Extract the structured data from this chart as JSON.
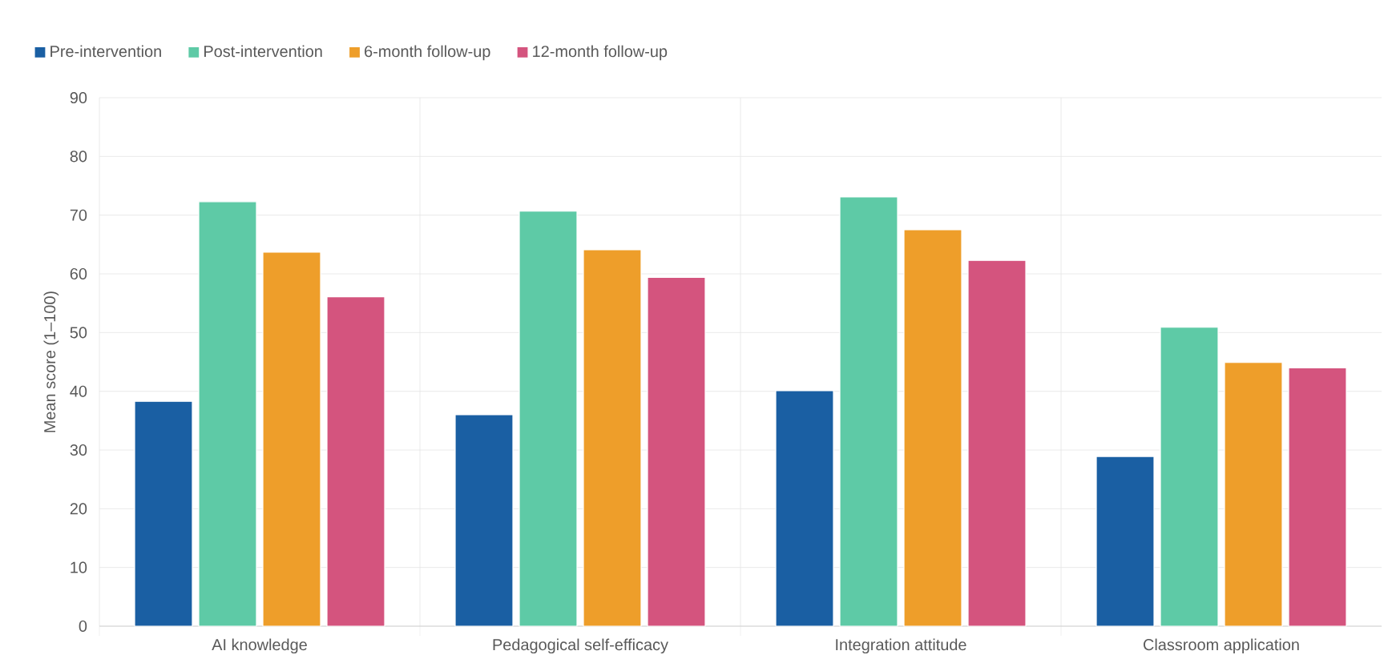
{
  "chart_data": {
    "type": "bar",
    "ylabel": "Mean score (1–100)",
    "categories": [
      "AI knowledge",
      "Pedagogical self-efficacy",
      "Integration attitude",
      "Classroom application"
    ],
    "series": [
      {
        "name": "Pre-intervention",
        "color": "#1a5fa3",
        "values": [
          38.3,
          36.0,
          40.1,
          28.9
        ]
      },
      {
        "name": "Post-intervention",
        "color": "#5ecaa6",
        "values": [
          72.3,
          70.7,
          73.1,
          50.9
        ]
      },
      {
        "name": "6-month follow-up",
        "color": "#ee9e2a",
        "values": [
          63.7,
          64.1,
          67.5,
          44.9
        ]
      },
      {
        "name": "12-month follow-up",
        "color": "#d4547e",
        "values": [
          56.1,
          59.4,
          62.3,
          44.0
        ]
      }
    ],
    "ylim": [
      0,
      90
    ],
    "yticks": [
      0,
      10,
      20,
      30,
      40,
      50,
      60,
      70,
      80,
      90
    ],
    "grid": true,
    "legend": "top left"
  }
}
